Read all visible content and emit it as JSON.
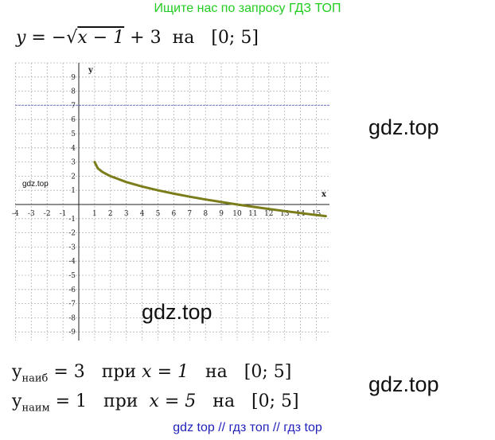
{
  "banner_top": "Ищите нас по запросу ГДЗ ТОП",
  "formula": {
    "lhs": "y",
    "eq": " = −",
    "sqrt_symbol": "√",
    "radicand": "x − 1",
    "rest": " + 3",
    "word": "на",
    "interval": "[0; 5]"
  },
  "watermarks": [
    "gdz.top",
    "gdz.top",
    "gdz.top"
  ],
  "watermark_small": "gdz.top",
  "results": {
    "max": {
      "y": "y",
      "sub": "наиб",
      "value": " = 3",
      "pri": "при",
      "xeq": "x = 1",
      "na": "на",
      "interval": "[0; 5]"
    },
    "min": {
      "y": "y",
      "sub": "наим",
      "value": " = 1",
      "pri": "при",
      "xeq": "x = 5",
      "na": "на",
      "interval": "[0; 5]"
    }
  },
  "banner_bottom": "gdz top  //  гдз топ  //  гдз top",
  "chart_data": {
    "type": "line",
    "title": "",
    "xlabel": "x",
    "ylabel": "y",
    "xlim": [
      -4,
      15.6
    ],
    "ylim": [
      -9.6,
      10
    ],
    "grid": true,
    "x_ticks": [
      -4,
      -3,
      -2,
      -1,
      1,
      2,
      3,
      4,
      5,
      6,
      7,
      8,
      9,
      10,
      11,
      12,
      13,
      14,
      15
    ],
    "y_ticks": [
      9,
      8,
      7,
      6,
      5,
      4,
      3,
      2,
      1,
      -1,
      -2,
      -3,
      -4,
      -5,
      -6,
      -7,
      -8,
      -9
    ],
    "series": [
      {
        "x": [
          1,
          1.2,
          1.5,
          2,
          3,
          4,
          5,
          6,
          7,
          8,
          9,
          10,
          11,
          12,
          13,
          14,
          15,
          15.6
        ],
        "y": [
          3,
          2.553,
          2.293,
          2,
          1.586,
          1.268,
          1,
          0.764,
          0.551,
          0.354,
          0.172,
          0,
          -0.162,
          -0.317,
          -0.464,
          -0.606,
          -0.742,
          -0.821
        ],
        "color": "#7a7d1a"
      }
    ],
    "highlight_line_y": 7,
    "highlight_color": "#8888cc"
  }
}
